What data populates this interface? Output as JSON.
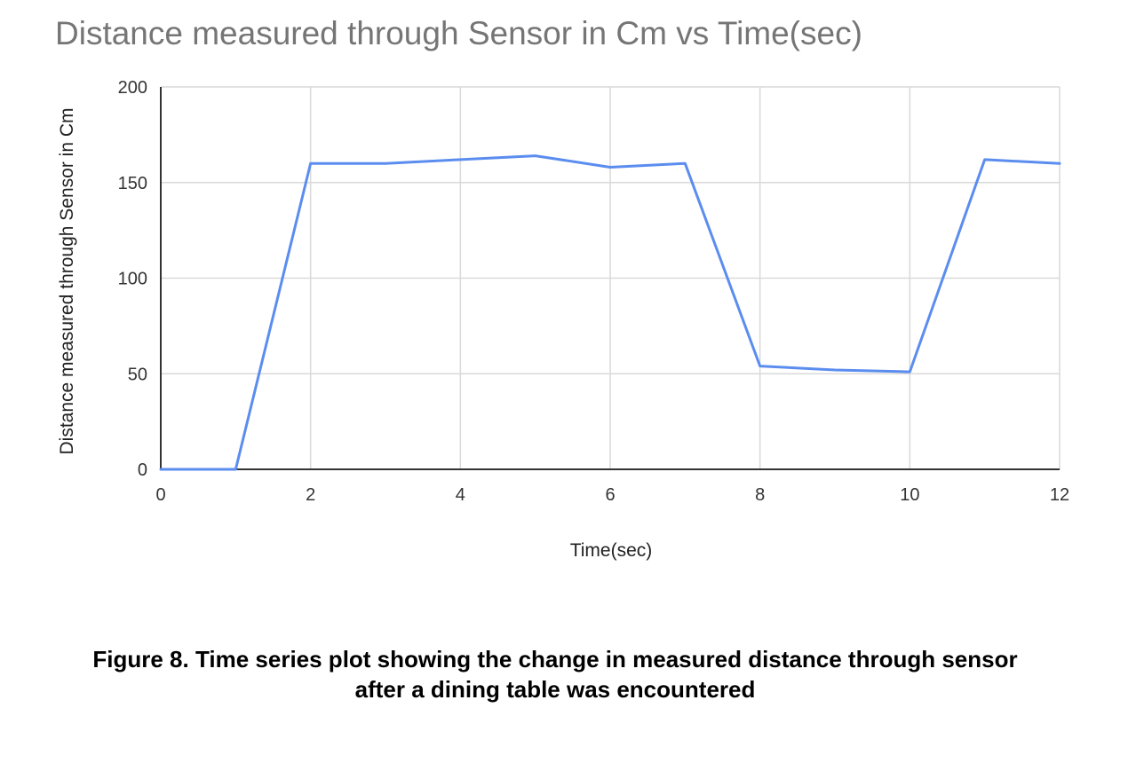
{
  "chart_data": {
    "type": "line",
    "title": "Distance measured through Sensor in Cm vs Time(sec)",
    "xlabel": "Time(sec)",
    "ylabel": "Distance measured through Sensor in Cm",
    "xlim": [
      0,
      12
    ],
    "ylim": [
      0,
      200
    ],
    "xticks": [
      0,
      2,
      4,
      6,
      8,
      10,
      12
    ],
    "yticks": [
      0,
      50,
      100,
      150,
      200
    ],
    "grid": true,
    "line_color": "#5b8def",
    "series": [
      {
        "x": [
          0,
          1,
          2,
          3,
          4,
          5,
          6,
          7,
          8,
          9,
          10,
          11,
          12
        ],
        "values": [
          0,
          0,
          160,
          160,
          162,
          164,
          158,
          160,
          54,
          52,
          51,
          162,
          160
        ]
      }
    ]
  },
  "caption": {
    "line1": "Figure 8. Time series plot showing the change in measured distance through sensor",
    "line2": "after a dining table was encountered"
  }
}
